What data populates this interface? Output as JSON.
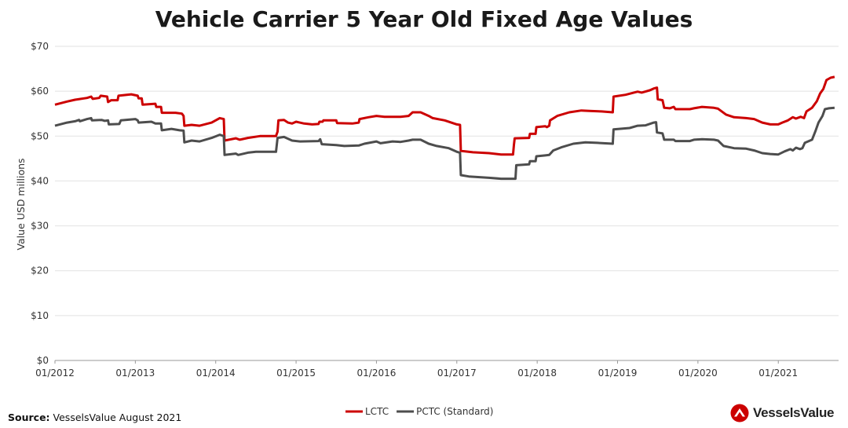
{
  "brand": {
    "name": "VesselsValue",
    "accent": "#cc0000"
  },
  "source": {
    "label": "Source:",
    "text": "VesselsValue August 2021"
  },
  "chart_data": {
    "type": "line",
    "title": "Vehicle Carrier 5 Year Old Fixed Age Values",
    "ylabel": "Value USD millions",
    "xlabel": "",
    "ylim": [
      0,
      70
    ],
    "xlim": [
      2012.0,
      2021.75
    ],
    "yticks": [
      0,
      10,
      20,
      30,
      40,
      50,
      60,
      70
    ],
    "ytick_labels": [
      "$0",
      "$10",
      "$20",
      "$30",
      "$40",
      "$50",
      "$60",
      "$70"
    ],
    "xticks": [
      2012,
      2013,
      2014,
      2015,
      2016,
      2017,
      2018,
      2019,
      2020,
      2021
    ],
    "xtick_labels": [
      "01/2012",
      "01/2013",
      "01/2014",
      "01/2015",
      "01/2016",
      "01/2017",
      "01/2018",
      "01/2019",
      "01/2020",
      "01/2021"
    ],
    "grid": "horizontal",
    "legend_position": "bottom-center",
    "series": [
      {
        "name": "LCTC",
        "color": "#cc0000",
        "points": [
          [
            2012.0,
            57.0
          ],
          [
            2012.15,
            57.7
          ],
          [
            2012.25,
            58.1
          ],
          [
            2012.4,
            58.5
          ],
          [
            2012.45,
            58.8
          ],
          [
            2012.47,
            58.3
          ],
          [
            2012.55,
            58.5
          ],
          [
            2012.57,
            59.0
          ],
          [
            2012.65,
            58.8
          ],
          [
            2012.66,
            57.6
          ],
          [
            2012.7,
            58.0
          ],
          [
            2012.78,
            58.0
          ],
          [
            2012.79,
            59.0
          ],
          [
            2012.95,
            59.3
          ],
          [
            2013.03,
            59.0
          ],
          [
            2013.04,
            58.4
          ],
          [
            2013.08,
            58.4
          ],
          [
            2013.09,
            57.0
          ],
          [
            2013.25,
            57.2
          ],
          [
            2013.26,
            56.5
          ],
          [
            2013.32,
            56.5
          ],
          [
            2013.33,
            55.2
          ],
          [
            2013.4,
            55.2
          ],
          [
            2013.5,
            55.2
          ],
          [
            2013.58,
            55.0
          ],
          [
            2013.6,
            54.5
          ],
          [
            2013.61,
            52.3
          ],
          [
            2013.7,
            52.5
          ],
          [
            2013.8,
            52.3
          ],
          [
            2013.95,
            53.0
          ],
          [
            2014.05,
            54.0
          ],
          [
            2014.1,
            53.8
          ],
          [
            2014.11,
            49.0
          ],
          [
            2014.25,
            49.5
          ],
          [
            2014.3,
            49.2
          ],
          [
            2014.4,
            49.6
          ],
          [
            2014.55,
            50.0
          ],
          [
            2014.75,
            50.0
          ],
          [
            2014.77,
            51.0
          ],
          [
            2014.78,
            53.5
          ],
          [
            2014.85,
            53.6
          ],
          [
            2014.9,
            53.0
          ],
          [
            2014.95,
            52.8
          ],
          [
            2015.0,
            53.2
          ],
          [
            2015.1,
            52.8
          ],
          [
            2015.2,
            52.6
          ],
          [
            2015.28,
            52.7
          ],
          [
            2015.29,
            53.2
          ],
          [
            2015.33,
            53.2
          ],
          [
            2015.34,
            53.5
          ],
          [
            2015.5,
            53.5
          ],
          [
            2015.51,
            52.9
          ],
          [
            2015.7,
            52.8
          ],
          [
            2015.78,
            53.0
          ],
          [
            2015.79,
            53.8
          ],
          [
            2015.9,
            54.2
          ],
          [
            2016.0,
            54.5
          ],
          [
            2016.1,
            54.3
          ],
          [
            2016.3,
            54.3
          ],
          [
            2016.4,
            54.5
          ],
          [
            2016.45,
            55.3
          ],
          [
            2016.55,
            55.3
          ],
          [
            2016.65,
            54.5
          ],
          [
            2016.7,
            54.0
          ],
          [
            2016.85,
            53.5
          ],
          [
            2017.0,
            52.6
          ],
          [
            2017.04,
            52.5
          ],
          [
            2017.05,
            46.7
          ],
          [
            2017.2,
            46.4
          ],
          [
            2017.4,
            46.2
          ],
          [
            2017.55,
            45.9
          ],
          [
            2017.7,
            45.9
          ],
          [
            2017.71,
            48.0
          ],
          [
            2017.72,
            49.5
          ],
          [
            2017.9,
            49.6
          ],
          [
            2017.91,
            50.5
          ],
          [
            2017.98,
            50.5
          ],
          [
            2017.99,
            52.0
          ],
          [
            2018.1,
            52.2
          ],
          [
            2018.12,
            52.0
          ],
          [
            2018.15,
            52.3
          ],
          [
            2018.16,
            53.5
          ],
          [
            2018.25,
            54.5
          ],
          [
            2018.4,
            55.3
          ],
          [
            2018.55,
            55.7
          ],
          [
            2018.65,
            55.6
          ],
          [
            2018.8,
            55.5
          ],
          [
            2018.94,
            55.3
          ],
          [
            2018.95,
            58.8
          ],
          [
            2019.1,
            59.2
          ],
          [
            2019.25,
            59.9
          ],
          [
            2019.3,
            59.7
          ],
          [
            2019.4,
            60.2
          ],
          [
            2019.45,
            60.6
          ],
          [
            2019.49,
            60.8
          ],
          [
            2019.5,
            58.2
          ],
          [
            2019.56,
            58.0
          ],
          [
            2019.58,
            56.3
          ],
          [
            2019.65,
            56.2
          ],
          [
            2019.7,
            56.5
          ],
          [
            2019.72,
            56.0
          ],
          [
            2019.9,
            56.0
          ],
          [
            2019.95,
            56.2
          ],
          [
            2020.05,
            56.5
          ],
          [
            2020.2,
            56.3
          ],
          [
            2020.25,
            56.1
          ],
          [
            2020.35,
            54.8
          ],
          [
            2020.45,
            54.2
          ],
          [
            2020.6,
            54.0
          ],
          [
            2020.7,
            53.8
          ],
          [
            2020.8,
            53.0
          ],
          [
            2020.9,
            52.6
          ],
          [
            2021.0,
            52.6
          ],
          [
            2021.05,
            53.0
          ],
          [
            2021.12,
            53.5
          ],
          [
            2021.18,
            54.2
          ],
          [
            2021.22,
            53.9
          ],
          [
            2021.28,
            54.3
          ],
          [
            2021.32,
            54.0
          ],
          [
            2021.35,
            55.5
          ],
          [
            2021.42,
            56.3
          ],
          [
            2021.48,
            57.8
          ],
          [
            2021.52,
            59.5
          ],
          [
            2021.56,
            60.5
          ],
          [
            2021.6,
            62.5
          ],
          [
            2021.65,
            63.0
          ],
          [
            2021.7,
            63.2
          ]
        ]
      },
      {
        "name": "PCTC (Standard)",
        "color": "#4d4d4d",
        "points": [
          [
            2012.0,
            52.3
          ],
          [
            2012.15,
            53.0
          ],
          [
            2012.25,
            53.3
          ],
          [
            2012.3,
            53.6
          ],
          [
            2012.31,
            53.3
          ],
          [
            2012.4,
            53.8
          ],
          [
            2012.45,
            54.0
          ],
          [
            2012.46,
            53.5
          ],
          [
            2012.58,
            53.6
          ],
          [
            2012.62,
            53.4
          ],
          [
            2012.66,
            53.5
          ],
          [
            2012.67,
            52.6
          ],
          [
            2012.8,
            52.7
          ],
          [
            2012.82,
            53.5
          ],
          [
            2013.0,
            53.8
          ],
          [
            2013.03,
            53.5
          ],
          [
            2013.04,
            53.0
          ],
          [
            2013.2,
            53.2
          ],
          [
            2013.25,
            52.8
          ],
          [
            2013.32,
            52.8
          ],
          [
            2013.33,
            51.3
          ],
          [
            2013.45,
            51.6
          ],
          [
            2013.55,
            51.3
          ],
          [
            2013.6,
            51.2
          ],
          [
            2013.61,
            48.6
          ],
          [
            2013.7,
            49.0
          ],
          [
            2013.8,
            48.8
          ],
          [
            2013.95,
            49.6
          ],
          [
            2014.05,
            50.3
          ],
          [
            2014.1,
            50.0
          ],
          [
            2014.11,
            45.8
          ],
          [
            2014.25,
            46.1
          ],
          [
            2014.28,
            45.8
          ],
          [
            2014.4,
            46.3
          ],
          [
            2014.5,
            46.5
          ],
          [
            2014.75,
            46.5
          ],
          [
            2014.77,
            49.6
          ],
          [
            2014.85,
            49.8
          ],
          [
            2014.95,
            49.0
          ],
          [
            2015.05,
            48.8
          ],
          [
            2015.28,
            48.9
          ],
          [
            2015.3,
            49.3
          ],
          [
            2015.32,
            48.2
          ],
          [
            2015.5,
            48.0
          ],
          [
            2015.6,
            47.8
          ],
          [
            2015.78,
            47.9
          ],
          [
            2015.85,
            48.3
          ],
          [
            2016.0,
            48.8
          ],
          [
            2016.05,
            48.4
          ],
          [
            2016.2,
            48.8
          ],
          [
            2016.3,
            48.7
          ],
          [
            2016.4,
            49.0
          ],
          [
            2016.45,
            49.2
          ],
          [
            2016.55,
            49.2
          ],
          [
            2016.65,
            48.3
          ],
          [
            2016.75,
            47.8
          ],
          [
            2016.9,
            47.3
          ],
          [
            2017.0,
            46.5
          ],
          [
            2017.04,
            46.3
          ],
          [
            2017.05,
            41.3
          ],
          [
            2017.15,
            41.0
          ],
          [
            2017.4,
            40.7
          ],
          [
            2017.55,
            40.5
          ],
          [
            2017.73,
            40.5
          ],
          [
            2017.74,
            43.5
          ],
          [
            2017.9,
            43.7
          ],
          [
            2017.91,
            44.4
          ],
          [
            2017.98,
            44.4
          ],
          [
            2017.99,
            45.5
          ],
          [
            2018.1,
            45.7
          ],
          [
            2018.15,
            45.8
          ],
          [
            2018.2,
            46.8
          ],
          [
            2018.3,
            47.5
          ],
          [
            2018.45,
            48.3
          ],
          [
            2018.6,
            48.6
          ],
          [
            2018.75,
            48.5
          ],
          [
            2018.94,
            48.3
          ],
          [
            2018.95,
            51.5
          ],
          [
            2019.15,
            51.8
          ],
          [
            2019.25,
            52.3
          ],
          [
            2019.35,
            52.4
          ],
          [
            2019.45,
            53.0
          ],
          [
            2019.48,
            53.1
          ],
          [
            2019.49,
            50.8
          ],
          [
            2019.56,
            50.6
          ],
          [
            2019.58,
            49.2
          ],
          [
            2019.7,
            49.2
          ],
          [
            2019.72,
            48.9
          ],
          [
            2019.9,
            48.9
          ],
          [
            2019.95,
            49.2
          ],
          [
            2020.05,
            49.3
          ],
          [
            2020.2,
            49.2
          ],
          [
            2020.25,
            49.0
          ],
          [
            2020.32,
            47.8
          ],
          [
            2020.45,
            47.3
          ],
          [
            2020.6,
            47.2
          ],
          [
            2020.7,
            46.8
          ],
          [
            2020.8,
            46.2
          ],
          [
            2020.9,
            46.0
          ],
          [
            2021.0,
            45.9
          ],
          [
            2021.08,
            46.6
          ],
          [
            2021.15,
            47.1
          ],
          [
            2021.18,
            46.8
          ],
          [
            2021.22,
            47.4
          ],
          [
            2021.27,
            47.1
          ],
          [
            2021.3,
            47.3
          ],
          [
            2021.33,
            48.5
          ],
          [
            2021.42,
            49.2
          ],
          [
            2021.46,
            51.0
          ],
          [
            2021.5,
            53.0
          ],
          [
            2021.55,
            54.5
          ],
          [
            2021.58,
            56.0
          ],
          [
            2021.63,
            56.2
          ],
          [
            2021.7,
            56.3
          ]
        ]
      }
    ]
  }
}
